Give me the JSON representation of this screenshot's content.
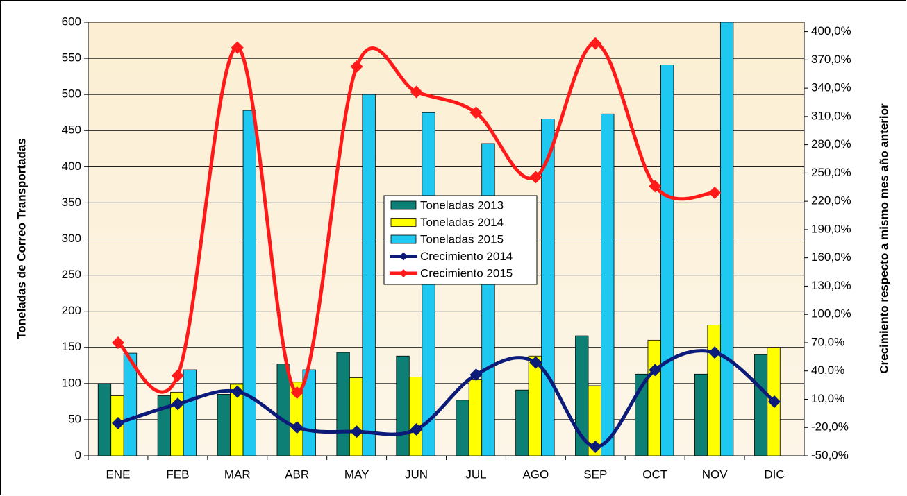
{
  "chart_data": {
    "type": "bar",
    "categories": [
      "ENE",
      "FEB",
      "MAR",
      "ABR",
      "MAY",
      "JUN",
      "JUL",
      "AGO",
      "SEP",
      "OCT",
      "NOV",
      "DIC"
    ],
    "ylabel": "Toneladas de Correo  Transportadas",
    "y2label": "Crecimiento respecto a mismo mes año anterior",
    "ylim": [
      0,
      600
    ],
    "yticks": [
      0,
      50,
      100,
      150,
      200,
      250,
      300,
      350,
      400,
      450,
      500,
      550,
      600
    ],
    "y2lim": [
      -50,
      410
    ],
    "y2ticks": [
      {
        "value": -50,
        "label": "-50,0%"
      },
      {
        "value": -20,
        "label": "-20,0%"
      },
      {
        "value": 10,
        "label": "10,0%"
      },
      {
        "value": 40,
        "label": "40,0%"
      },
      {
        "value": 70,
        "label": "70,0%"
      },
      {
        "value": 100,
        "label": "100,0%"
      },
      {
        "value": 130,
        "label": "130,0%"
      },
      {
        "value": 160,
        "label": "160,0%"
      },
      {
        "value": 190,
        "label": "190,0%"
      },
      {
        "value": 220,
        "label": "220,0%"
      },
      {
        "value": 250,
        "label": "250,0%"
      },
      {
        "value": 280,
        "label": "280,0%"
      },
      {
        "value": 310,
        "label": "310,0%"
      },
      {
        "value": 340,
        "label": "340,0%"
      },
      {
        "value": 370,
        "label": "370,0%"
      },
      {
        "value": 400,
        "label": "400,0%"
      }
    ],
    "grid": true,
    "series": [
      {
        "name": "Toneladas 2013",
        "type": "bar",
        "color": "#0e7f74",
        "values": [
          100,
          83,
          85,
          127,
          143,
          138,
          77,
          91,
          166,
          113,
          113,
          140
        ]
      },
      {
        "name": "Toneladas 2014",
        "type": "bar",
        "color": "#ffff00",
        "values": [
          83,
          88,
          99,
          102,
          108,
          109,
          105,
          138,
          97,
          160,
          181,
          150
        ]
      },
      {
        "name": "Toneladas 2015",
        "type": "bar",
        "color": "#1ec8f0",
        "values": [
          142,
          119,
          478,
          119,
          500,
          475,
          432,
          466,
          473,
          541,
          600,
          null
        ]
      },
      {
        "name": "Crecimiento 2014",
        "type": "line",
        "axis": "y2",
        "color": "#0c1a78",
        "values": [
          -15.4,
          5,
          18,
          -19.9,
          -24.3,
          -22,
          36,
          49,
          -40.4,
          41,
          59.6,
          7.4
        ]
      },
      {
        "name": "Crecimiento 2015",
        "type": "line",
        "axis": "y2",
        "color": "#ff1a1a",
        "values": [
          70,
          35,
          383,
          17,
          363,
          336,
          314,
          245.6,
          387.5,
          236,
          229,
          null
        ]
      }
    ]
  }
}
